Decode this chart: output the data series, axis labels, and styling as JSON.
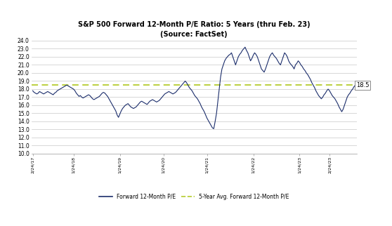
{
  "title_line1": "S&P 500 Forward 12-Month P/E Ratio: 5 Years (thru Feb. 23)",
  "title_line2": "(Source: FactSet)",
  "avg_line_value": 18.5,
  "avg_label": "18.5",
  "ylim": [
    10.0,
    24.0
  ],
  "yticks": [
    10.0,
    11.0,
    12.0,
    13.0,
    14.0,
    15.0,
    16.0,
    17.0,
    18.0,
    19.0,
    20.0,
    21.0,
    22.0,
    23.0,
    24.0
  ],
  "line_color": "#1B2D6B",
  "avg_line_color": "#B5CC2E",
  "background_color": "#ffffff",
  "grid_color": "#c8c8c8",
  "legend_label1": "Forward 12-Month P/E",
  "legend_label2": "5-Year Avg. Forward 12-Month P/E",
  "y_values": [
    17.8,
    17.6,
    17.5,
    17.4,
    17.5,
    17.7,
    17.6,
    17.5,
    17.4,
    17.5,
    17.6,
    17.7,
    17.6,
    17.5,
    17.4,
    17.3,
    17.5,
    17.6,
    17.8,
    17.9,
    18.0,
    18.1,
    18.2,
    18.3,
    18.4,
    18.5,
    18.4,
    18.3,
    18.2,
    18.1,
    18.0,
    17.8,
    17.5,
    17.3,
    17.1,
    17.2,
    17.0,
    16.9,
    17.0,
    17.1,
    17.2,
    17.3,
    17.2,
    17.0,
    16.8,
    16.7,
    16.8,
    16.9,
    17.0,
    17.1,
    17.3,
    17.5,
    17.6,
    17.5,
    17.3,
    17.1,
    16.8,
    16.5,
    16.2,
    15.9,
    15.6,
    15.3,
    14.8,
    14.5,
    14.9,
    15.3,
    15.6,
    15.8,
    16.0,
    16.1,
    16.2,
    16.0,
    15.8,
    15.7,
    15.6,
    15.7,
    15.8,
    16.0,
    16.2,
    16.4,
    16.5,
    16.4,
    16.3,
    16.2,
    16.1,
    16.3,
    16.5,
    16.6,
    16.7,
    16.6,
    16.5,
    16.4,
    16.5,
    16.6,
    16.8,
    17.0,
    17.2,
    17.4,
    17.5,
    17.6,
    17.7,
    17.6,
    17.5,
    17.4,
    17.5,
    17.6,
    17.8,
    18.0,
    18.2,
    18.4,
    18.6,
    18.8,
    19.0,
    18.8,
    18.5,
    18.2,
    18.0,
    17.8,
    17.5,
    17.2,
    17.0,
    16.8,
    16.5,
    16.2,
    15.8,
    15.5,
    15.2,
    14.8,
    14.4,
    14.1,
    13.8,
    13.5,
    13.2,
    13.1,
    14.0,
    15.0,
    16.5,
    18.0,
    19.5,
    20.5,
    21.0,
    21.5,
    21.8,
    22.0,
    22.2,
    22.3,
    22.5,
    22.0,
    21.5,
    21.0,
    21.5,
    22.0,
    22.3,
    22.5,
    22.8,
    23.0,
    23.2,
    22.8,
    22.5,
    22.0,
    21.5,
    21.8,
    22.2,
    22.5,
    22.3,
    22.0,
    21.5,
    21.0,
    20.5,
    20.3,
    20.1,
    20.5,
    21.0,
    21.5,
    22.0,
    22.3,
    22.5,
    22.2,
    22.0,
    21.8,
    21.5,
    21.2,
    21.0,
    21.5,
    22.0,
    22.5,
    22.3,
    22.0,
    21.5,
    21.2,
    21.0,
    20.8,
    20.5,
    21.0,
    21.2,
    21.5,
    21.3,
    21.0,
    20.8,
    20.5,
    20.3,
    20.0,
    19.8,
    19.5,
    19.2,
    18.8,
    18.5,
    18.2,
    17.8,
    17.5,
    17.2,
    17.0,
    16.8,
    17.0,
    17.3,
    17.5,
    17.8,
    18.0,
    17.8,
    17.5,
    17.2,
    17.0,
    16.8,
    16.5,
    16.2,
    15.8,
    15.5,
    15.2,
    15.5,
    16.0,
    16.5,
    17.0,
    17.3,
    17.5,
    17.8,
    18.0,
    18.3,
    18.5
  ],
  "x_tick_labels": [
    "2/24/17",
    "",
    "",
    "",
    "",
    "",
    "",
    "",
    "",
    "",
    "",
    "1/24/18",
    "",
    "",
    "",
    "",
    "",
    "",
    "",
    "",
    "",
    "",
    "",
    "1/24/19",
    "",
    "",
    "",
    "",
    "",
    "",
    "",
    "",
    "",
    "",
    "",
    "1/24/20",
    "",
    "",
    "",
    "",
    "",
    "",
    "",
    "",
    "",
    "",
    "",
    "1/24/21",
    "",
    "",
    "",
    "",
    "",
    "",
    "",
    "",
    "",
    "",
    "",
    "1/24/22",
    "",
    "",
    "",
    "",
    "",
    "",
    "",
    "",
    "",
    "",
    "",
    "1/24/23",
    "2/24/23"
  ]
}
